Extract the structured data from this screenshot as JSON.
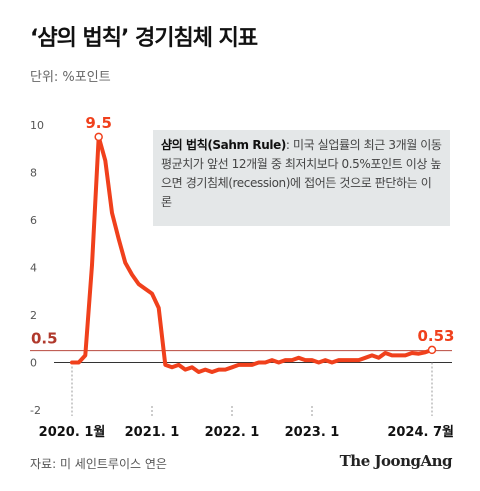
{
  "title": "‘샴의 법칙’ 경기침체 지표",
  "unit_label": "단위: %포인트",
  "note": {
    "term": "샴의 법칙(Sahm Rule)",
    "text": ": 미국 실업률의 최근 3개월 이동평균치가 앞선 12개월 중 최저치보다 0.5%포인트 이상 높으면 경기침체(recession)에 접어든 것으로 판단하는 이론"
  },
  "source": "자료: 미 세인트루이스 연은",
  "brand": "The JoongAng",
  "colors": {
    "line": "#f0401c",
    "threshold": "#b84a3e",
    "dashed": "#999999"
  },
  "chart_data": {
    "type": "line",
    "title": "‘샴의 법칙’ 경기침체 지표",
    "ylabel": "%포인트",
    "ylim": [
      -2,
      10
    ],
    "yticks": [
      -2,
      0,
      2,
      4,
      6,
      8,
      10
    ],
    "ytick_labels": [
      "-2",
      "0",
      "2",
      "4",
      "6",
      "8",
      "10"
    ],
    "xticks": [
      "2020.1",
      "2021.1",
      "2022.1",
      "2023.1",
      "2024.7"
    ],
    "xtick_labels": [
      "2020. 1월",
      "2021. 1",
      "2022. 1",
      "2023. 1",
      "2024. 7월"
    ],
    "threshold": {
      "value": 0.5,
      "label": "0.5"
    },
    "annotations": [
      {
        "x": "2020.5",
        "y": 9.5,
        "label": "9.5"
      },
      {
        "x": "2024.7",
        "y": 0.53,
        "label": "0.53"
      }
    ],
    "series": [
      {
        "x": [
          "2020.1",
          "2020.2",
          "2020.3",
          "2020.4",
          "2020.5",
          "2020.6",
          "2020.7",
          "2020.8",
          "2020.9",
          "2020.10",
          "2020.11",
          "2020.12",
          "2021.1",
          "2021.2",
          "2021.3",
          "2021.4",
          "2021.5",
          "2021.6",
          "2021.7",
          "2021.8",
          "2021.9",
          "2021.10",
          "2021.11",
          "2021.12",
          "2022.1",
          "2022.2",
          "2022.3",
          "2022.4",
          "2022.5",
          "2022.6",
          "2022.7",
          "2022.8",
          "2022.9",
          "2022.10",
          "2022.11",
          "2022.12",
          "2023.1",
          "2023.2",
          "2023.3",
          "2023.4",
          "2023.5",
          "2023.6",
          "2023.7",
          "2023.8",
          "2023.9",
          "2023.10",
          "2023.11",
          "2023.12",
          "2024.1",
          "2024.2",
          "2024.3",
          "2024.4",
          "2024.5",
          "2024.6",
          "2024.7"
        ],
        "values": [
          0.0,
          0.0,
          0.3,
          4.1,
          9.5,
          8.5,
          6.3,
          5.2,
          4.2,
          3.7,
          3.3,
          3.1,
          2.9,
          2.3,
          -0.1,
          -0.2,
          -0.1,
          -0.3,
          -0.2,
          -0.4,
          -0.3,
          -0.4,
          -0.3,
          -0.3,
          -0.2,
          -0.1,
          -0.1,
          -0.1,
          0.0,
          0.0,
          0.1,
          0.0,
          0.1,
          0.1,
          0.2,
          0.1,
          0.1,
          0.0,
          0.1,
          0.0,
          0.1,
          0.1,
          0.1,
          0.1,
          0.2,
          0.3,
          0.2,
          0.4,
          0.3,
          0.3,
          0.3,
          0.4,
          0.37,
          0.43,
          0.53
        ]
      }
    ]
  }
}
